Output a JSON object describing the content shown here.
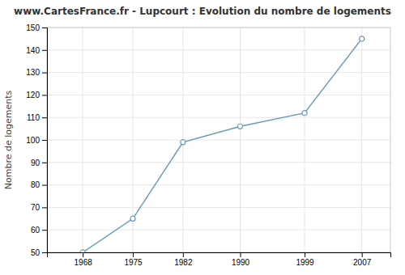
{
  "chart_data": {
    "type": "line",
    "title": "www.CartesFrance.fr - Lupcourt : Evolution du nombre de logements",
    "ylabel": "Nombre de logements",
    "x": [
      1968,
      1975,
      1982,
      1990,
      1999,
      2007
    ],
    "values": [
      50,
      65,
      99,
      106,
      112,
      145
    ],
    "color": "#6699bb",
    "marker": "circle",
    "xlim": [
      1963,
      2011
    ],
    "ylim": [
      50,
      150
    ],
    "xticks": [
      1968,
      1975,
      1982,
      1990,
      1999,
      2007
    ],
    "yticks": [
      50,
      60,
      70,
      80,
      90,
      100,
      110,
      120,
      130,
      140,
      150
    ],
    "grid": true
  }
}
